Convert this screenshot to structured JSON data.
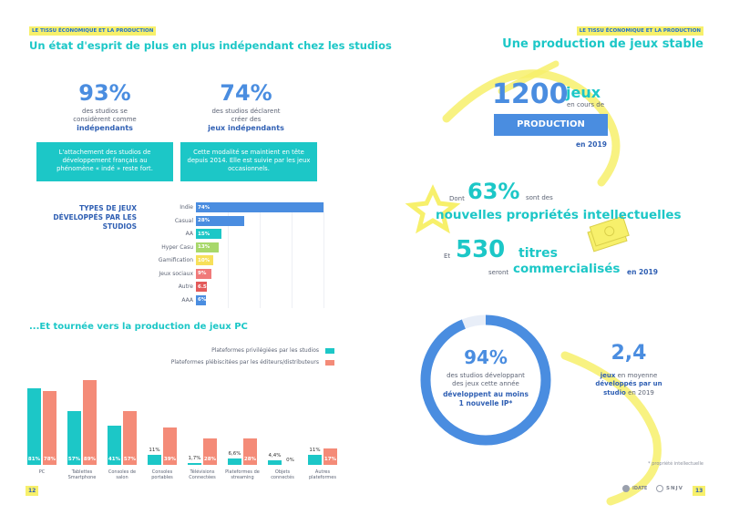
{
  "left": {
    "tag": "LE TISSU ÉCONOMIQUE ET LA PRODUCTION",
    "title": "Un état d'esprit de plus en plus indépendant chez les studios",
    "stat1": {
      "value": "93%",
      "line1": "des studios se",
      "line2": "considèrent comme",
      "strong": "indépendants",
      "box": [
        "L'attachement des studios de",
        "développement français au",
        "phénomène « indé » reste fort."
      ]
    },
    "stat2": {
      "value": "74%",
      "line1": "des studios déclarent",
      "line2": "créer des",
      "strong": "jeux indépendants",
      "box": [
        "Cette modalité se maintient en tête",
        "depuis 2014. Elle est suivie par les jeux",
        "occasionnels."
      ]
    },
    "types_title": [
      "TYPES DE JEUX",
      "DÉVELOPPÉS PAR LES",
      "STUDIOS"
    ],
    "section2_title": "...Et tournée vers la production de jeux PC",
    "page_left": "12"
  },
  "types_chart": {
    "type": "bar",
    "categories": [
      "Indie",
      "Casual",
      "AA",
      "Hyper Casu",
      "Gamification",
      "Jeux sociaux",
      "Autre",
      "AAA"
    ],
    "values": [
      74,
      28,
      15,
      13,
      10,
      9,
      6.5,
      6
    ],
    "labels": [
      "74%",
      "28%",
      "15%",
      "13%",
      "10%",
      "9%",
      "6.5%",
      "6%"
    ],
    "colors": [
      "#4a8de0",
      "#4a8de0",
      "#1cc7c7",
      "#a8d86b",
      "#f7e05a",
      "#f07a7a",
      "#e35a5a",
      "#4a8de0"
    ]
  },
  "platform_chart": {
    "type": "bar",
    "categories": [
      "PC",
      "Tablettes\nSmartphone",
      "Consoles de\nsalon",
      "Consoles\nportables",
      "Télévisions\nConnectées",
      "Plateformes de\nstreaming",
      "Objets\nconnectés",
      "Autres\nplateformes"
    ],
    "series": [
      {
        "name": "Plateformes privilégiées par les studios",
        "values": [
          81,
          57,
          41,
          11,
          1.7,
          6.6,
          4.4,
          11
        ],
        "labels": [
          "81%",
          "57%",
          "41%",
          "11%",
          "1,7%",
          "6,6%",
          "4,4%",
          "11%"
        ],
        "color": "#1cc7c7"
      },
      {
        "name": "Plateformes plébiscitées par les éditeurs/distributeurs",
        "values": [
          78,
          89,
          57,
          39,
          28,
          28,
          0,
          17
        ],
        "labels": [
          "78%",
          "89%",
          "57%",
          "39%",
          "28%",
          "28%",
          "0%",
          "17%"
        ],
        "color": "#f48b78"
      }
    ],
    "ylim": [
      0,
      100
    ]
  },
  "right": {
    "tag": "LE TISSU ÉCONOMIQUE ET LA PRODUCTION",
    "title": "Une production de jeux stable",
    "s1_num": "1200",
    "s1_word": "jeux",
    "s1_sub": "en cours de",
    "s1_box": "PRODUCTION",
    "s1_year": "en 2019",
    "s2_pre": "Dont",
    "s2_num": "63%",
    "s2_mid": "sont des",
    "s2_big": "nouvelles propriétés intellectuelles",
    "s3_pre": "Et",
    "s3_num": "530",
    "s3_word": "titres",
    "s3_sub": "seront",
    "s3_big": "commercialisés",
    "s3_year": "en 2019",
    "donut": {
      "value": "94%",
      "fraction": 0.94,
      "l1": "des studios développant",
      "l2": "des jeux cette année",
      "strong1": "développent au moins",
      "strong2": "1 nouvelle IP*"
    },
    "avg": {
      "value": "2,4",
      "strong1": "jeux",
      "l1": "en moyenne",
      "strong2": "développés par un",
      "strong3": "studio",
      "l2": "en 2019"
    },
    "footnote": "* propriété intellectuelle",
    "logos": [
      "IDATE",
      "SNJV"
    ],
    "page_right": "13"
  }
}
